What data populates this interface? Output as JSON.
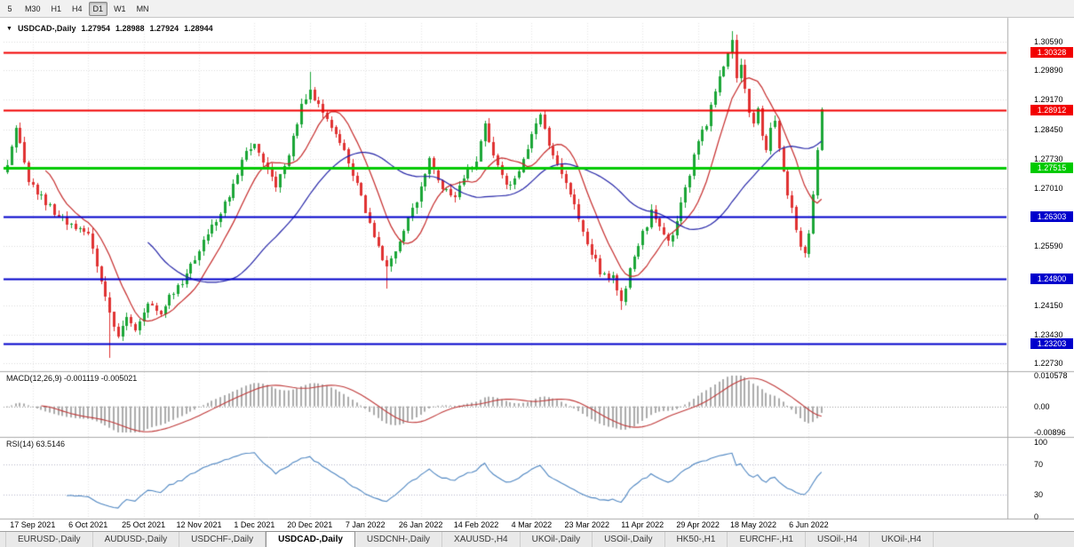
{
  "toolbar": {
    "timeframes": [
      {
        "label": "5",
        "active": false
      },
      {
        "label": "M30",
        "active": false
      },
      {
        "label": "H1",
        "active": false
      },
      {
        "label": "H4",
        "active": false
      },
      {
        "label": "D1",
        "active": true
      },
      {
        "label": "W1",
        "active": false
      },
      {
        "label": "MN",
        "active": false
      }
    ]
  },
  "chart": {
    "marker_icon": "▼",
    "header": {
      "symbol": "USDCAD-,Daily",
      "open": "1.27954",
      "high": "1.28988",
      "low": "1.27924",
      "close": "1.28944"
    },
    "y_axis": {
      "ticks": [
        "1.30590",
        "1.29890",
        "1.29170",
        "1.28450",
        "1.27730",
        "1.27010",
        "1.25590",
        "1.24150",
        "1.23430",
        "1.22730"
      ]
    },
    "levels": [
      {
        "price": 1.30328,
        "label": "1.30328",
        "color": "#f20000",
        "thickness": 2
      },
      {
        "price": 1.28912,
        "label": "1.28912",
        "color": "#f20000",
        "thickness": 2
      },
      {
        "price": 1.27515,
        "label": "1.27515",
        "color": "#00ca00",
        "thickness": 3
      },
      {
        "price": 1.26303,
        "label": "1.26303",
        "color": "#0000cc",
        "thickness": 2
      },
      {
        "price": 1.248,
        "label": "1.24800",
        "color": "#0000cc",
        "thickness": 2
      },
      {
        "price": 1.23203,
        "label": "1.23203",
        "color": "#0000cc",
        "thickness": 2
      }
    ],
    "x_axis": {
      "labels": [
        "17 Sep 2021",
        "6 Oct 2021",
        "25 Oct 2021",
        "12 Nov 2021",
        "1 Dec 2021",
        "20 Dec 2021",
        "7 Jan 2022",
        "26 Jan 2022",
        "14 Feb 2022",
        "4 Mar 2022",
        "23 Mar 2022",
        "11 Apr 2022",
        "29 Apr 2022",
        "18 May 2022",
        "6 Jun 2022"
      ],
      "indices": [
        6,
        19,
        32,
        45,
        58,
        71,
        84,
        97,
        110,
        123,
        136,
        149,
        162,
        175,
        188
      ]
    }
  },
  "macd_panel": {
    "label": "MACD(12,26,9) -0.001119 -0.005021",
    "values": [
      "-0.001119",
      "-0.005021"
    ],
    "y_ticks": [
      "0.010578",
      "0.00",
      "-0.00896"
    ],
    "range_max": 0.010578,
    "range_min": -0.00896
  },
  "rsi_panel": {
    "label": "RSI(14) 63.5146",
    "value": "63.5146",
    "y_ticks": [
      "100",
      "70",
      "30",
      "0"
    ],
    "levels": [
      70,
      30
    ]
  },
  "tabs": [
    {
      "label": "EURUSD-,Daily",
      "active": false
    },
    {
      "label": "AUDUSD-,Daily",
      "active": false
    },
    {
      "label": "USDCHF-,Daily",
      "active": false
    },
    {
      "label": "USDCAD-,Daily",
      "active": true
    },
    {
      "label": "USDCNH-,Daily",
      "active": false
    },
    {
      "label": "XAUUSD-,H4",
      "active": false
    },
    {
      "label": "UKOil-,Daily",
      "active": false
    },
    {
      "label": "USOil-,Daily",
      "active": false
    },
    {
      "label": "HK50-,H1",
      "active": false
    },
    {
      "label": "EURCHF-,H1",
      "active": false
    },
    {
      "label": "USOil-,H4",
      "active": false
    },
    {
      "label": "UKOil-,H4",
      "active": false
    }
  ],
  "colors": {
    "candle_up": "#1ba637",
    "candle_down": "#e03232",
    "ma_fast": "#c62b2b",
    "ma_slow": "#2424a8",
    "macd_histogram": "#ababab",
    "macd_signal": "#c03a3a",
    "rsi_line": "#4e86c2",
    "grid": "#dadada"
  },
  "chart_data": {
    "type": "candlestick",
    "symbol": "USDCAD",
    "timeframe": "Daily",
    "bar_count": 192,
    "first_open": 1.274,
    "price_range": [
      1.2273,
      1.3059
    ],
    "close_anchors": [
      [
        0,
        1.2755
      ],
      [
        2,
        1.2855
      ],
      [
        5,
        1.272
      ],
      [
        9,
        1.2665
      ],
      [
        13,
        1.2625
      ],
      [
        16,
        1.26
      ],
      [
        19,
        1.259
      ],
      [
        22,
        1.248
      ],
      [
        24,
        1.239
      ],
      [
        26,
        1.2345
      ],
      [
        28,
        1.238
      ],
      [
        30,
        1.236
      ],
      [
        32,
        1.24
      ],
      [
        34,
        1.242
      ],
      [
        36,
        1.239
      ],
      [
        38,
        1.243
      ],
      [
        41,
        1.247
      ],
      [
        45,
        1.255
      ],
      [
        48,
        1.261
      ],
      [
        51,
        1.266
      ],
      [
        54,
        1.273
      ],
      [
        56,
        1.28
      ],
      [
        58,
        1.281
      ],
      [
        60,
        1.276
      ],
      [
        63,
        1.27
      ],
      [
        66,
        1.278
      ],
      [
        69,
        1.29
      ],
      [
        71,
        1.294
      ],
      [
        74,
        1.288
      ],
      [
        77,
        1.284
      ],
      [
        80,
        1.276
      ],
      [
        84,
        1.265
      ],
      [
        87,
        1.256
      ],
      [
        89,
        1.25
      ],
      [
        92,
        1.256
      ],
      [
        95,
        1.265
      ],
      [
        97,
        1.27
      ],
      [
        99,
        1.277
      ],
      [
        102,
        1.27
      ],
      [
        105,
        1.268
      ],
      [
        108,
        1.274
      ],
      [
        110,
        1.277
      ],
      [
        112,
        1.286
      ],
      [
        114,
        1.278
      ],
      [
        117,
        1.27
      ],
      [
        120,
        1.274
      ],
      [
        123,
        1.283
      ],
      [
        125,
        1.288
      ],
      [
        127,
        1.281
      ],
      [
        130,
        1.273
      ],
      [
        133,
        1.266
      ],
      [
        136,
        1.257
      ],
      [
        139,
        1.25
      ],
      [
        142,
        1.248
      ],
      [
        144,
        1.243
      ],
      [
        146,
        1.25
      ],
      [
        149,
        1.259
      ],
      [
        151,
        1.264
      ],
      [
        153,
        1.261
      ],
      [
        155,
        1.257
      ],
      [
        157,
        1.262
      ],
      [
        159,
        1.27
      ],
      [
        162,
        1.281
      ],
      [
        164,
        1.286
      ],
      [
        166,
        1.294
      ],
      [
        168,
        1.3
      ],
      [
        170,
        1.306
      ],
      [
        171,
        1.297
      ],
      [
        172,
        1.301
      ],
      [
        173,
        1.294
      ],
      [
        174,
        1.289
      ],
      [
        175,
        1.286
      ],
      [
        176,
        1.289
      ],
      [
        177,
        1.283
      ],
      [
        178,
        1.279
      ],
      [
        179,
        1.284
      ],
      [
        180,
        1.286
      ],
      [
        181,
        1.28
      ],
      [
        182,
        1.274
      ],
      [
        183,
        1.269
      ],
      [
        184,
        1.265
      ],
      [
        185,
        1.26
      ],
      [
        186,
        1.256
      ],
      [
        187,
        1.254
      ],
      [
        188,
        1.259
      ],
      [
        189,
        1.2685
      ],
      [
        190,
        1.2795
      ],
      [
        191,
        1.28944
      ]
    ],
    "wick_spikes": [
      {
        "index": 24,
        "low": 1.2288
      },
      {
        "index": 71,
        "high": 1.2985
      },
      {
        "index": 89,
        "low": 1.2455
      },
      {
        "index": 144,
        "low": 1.2403
      },
      {
        "index": 170,
        "high": 1.3085
      }
    ],
    "last_bar": {
      "open": 1.27954,
      "high": 1.28988,
      "low": 1.27924,
      "close": 1.28944
    },
    "indicators": {
      "ma_fast_period": 10,
      "ma_slow_period": 34,
      "macd": [
        12,
        26,
        9
      ],
      "rsi_period": 14
    }
  }
}
